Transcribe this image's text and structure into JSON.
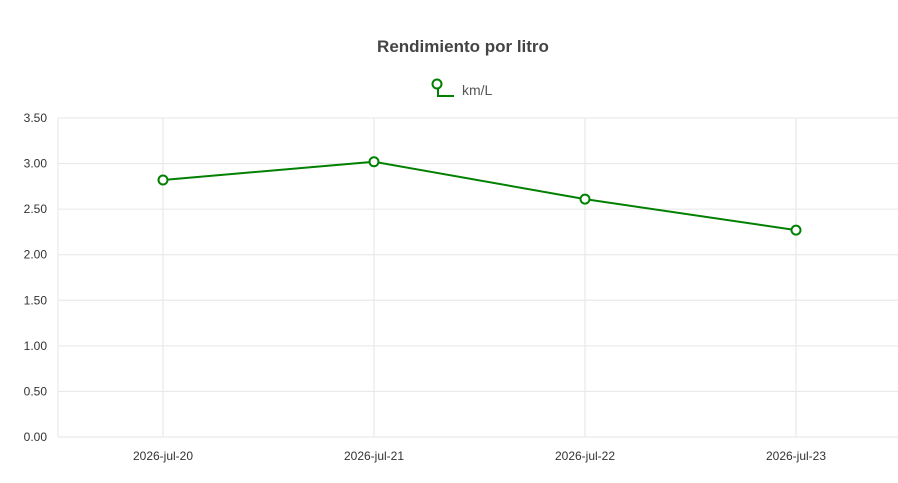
{
  "chart_data": {
    "type": "line",
    "title": "Rendimiento por litro",
    "xlabel": "",
    "ylabel": "",
    "categories": [
      "2026-jul-20",
      "2026-jul-21",
      "2026-jul-22",
      "2026-jul-23"
    ],
    "series": [
      {
        "name": "km/L",
        "color": "#008000",
        "values": [
          2.82,
          3.02,
          2.61,
          2.27
        ]
      }
    ],
    "ylim": [
      0,
      3.5
    ],
    "yticks": [
      "0.00",
      "0.50",
      "1.00",
      "1.50",
      "2.00",
      "2.50",
      "3.00",
      "3.50"
    ],
    "grid": true,
    "legend_position": "top-center"
  }
}
